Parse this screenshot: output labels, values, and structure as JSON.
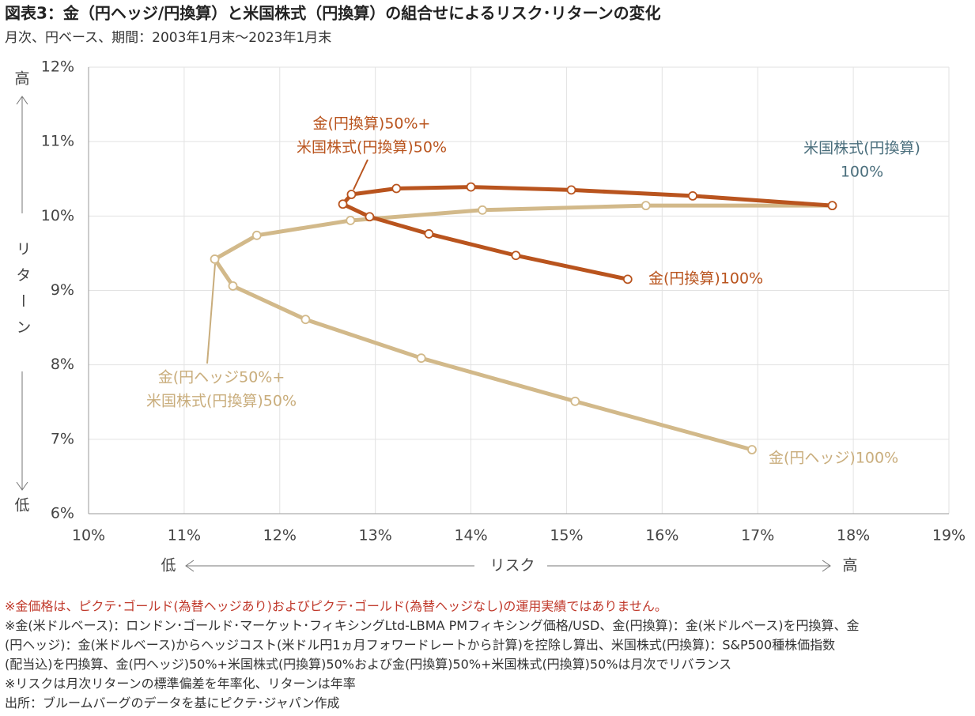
{
  "chart_data": {
    "type": "line",
    "title": "図表3：金（円ヘッジ/円換算）と米国株式（円換算）の組合せによるリスク･リターンの変化",
    "subtitle": "月次、円ベース、期間：2003年1月末～2023年1月末",
    "xlabel": "リスク",
    "x_low": "低",
    "x_high": "高",
    "ylabel": "リターン",
    "y_high": "高",
    "y_low": "低",
    "xlim": [
      10,
      19
    ],
    "xticks": [
      {
        "value": 10,
        "label": "10%"
      },
      {
        "value": 11,
        "label": "11%"
      },
      {
        "value": 12,
        "label": "12%"
      },
      {
        "value": 13,
        "label": "13%"
      },
      {
        "value": 14,
        "label": "14%"
      },
      {
        "value": 15,
        "label": "15%"
      },
      {
        "value": 16,
        "label": "16%"
      },
      {
        "value": 17,
        "label": "17%"
      },
      {
        "value": 18,
        "label": "18%"
      },
      {
        "value": 19,
        "label": "19%"
      }
    ],
    "ylim": [
      6,
      12
    ],
    "yticks": [
      {
        "value": 6,
        "label": "6%"
      },
      {
        "value": 7,
        "label": "7%"
      },
      {
        "value": 8,
        "label": "8%"
      },
      {
        "value": 9,
        "label": "9%"
      },
      {
        "value": 10,
        "label": "10%"
      },
      {
        "value": 11,
        "label": "11%"
      },
      {
        "value": 12,
        "label": "12%"
      }
    ],
    "grid": true,
    "series": [
      {
        "color": "#d2b98a",
        "x": [
          17.78,
          15.83,
          14.12,
          12.74,
          11.76,
          11.32,
          11.51,
          12.27,
          13.48,
          15.09,
          16.94
        ],
        "values": [
          10.14,
          10.14,
          10.08,
          9.94,
          9.74,
          9.42,
          9.06,
          8.61,
          8.09,
          7.51,
          6.86
        ]
      },
      {
        "color": "#b9541e",
        "x": [
          17.78,
          16.32,
          15.05,
          14.0,
          13.22,
          12.75,
          12.66,
          12.94,
          13.56,
          14.47,
          15.64
        ],
        "values": [
          10.14,
          10.27,
          10.35,
          10.39,
          10.37,
          10.29,
          10.16,
          9.99,
          9.76,
          9.47,
          9.15
        ]
      }
    ],
    "annotations": [
      {
        "lines": [
          "金(円換算)50%+",
          "米国株式(円換算)50%"
        ],
        "color": "#b9541e"
      },
      {
        "lines": [
          "米国株式(円換算)",
          "100%"
        ],
        "color": "#4a6e7c"
      },
      {
        "lines": [
          "金(円換算)100%"
        ],
        "color": "#b9541e"
      },
      {
        "lines": [
          "金(円ヘッジ50%+",
          "米国株式(円換算)50%"
        ],
        "color": "#c9ad7c"
      },
      {
        "lines": [
          "金(円ヘッジ)100%"
        ],
        "color": "#c9ad7c"
      }
    ],
    "notes": [
      "※金価格は、ピクテ･ゴールド(為替ヘッジあり)およびピクテ･ゴールド(為替ヘッジなし)の運用実績ではありません。",
      "※金(米ドルベース)：ロンドン･ゴールド･マーケット･フィキシングLtd-LBMA PMフィキシング価格/USD、金(円換算)：金(米ドルベース)を円換算、金",
      "(円ヘッジ)：金(米ドルベース)からヘッジコスト(米ドル円1ヵ月フォワードレートから計算)を控除し算出、米国株式(円換算)：S&P500種株価指数",
      "(配当込)を円換算、金(円ヘッジ)50%+米国株式(円換算)50%および金(円換算)50%+米国株式(円換算)50%は月次でリバランス",
      "※リスクは月次リターンの標準偏差を年率化、リターンは年率",
      "出所：ブルームバーグのデータを基にピクテ･ジャパン作成"
    ]
  }
}
